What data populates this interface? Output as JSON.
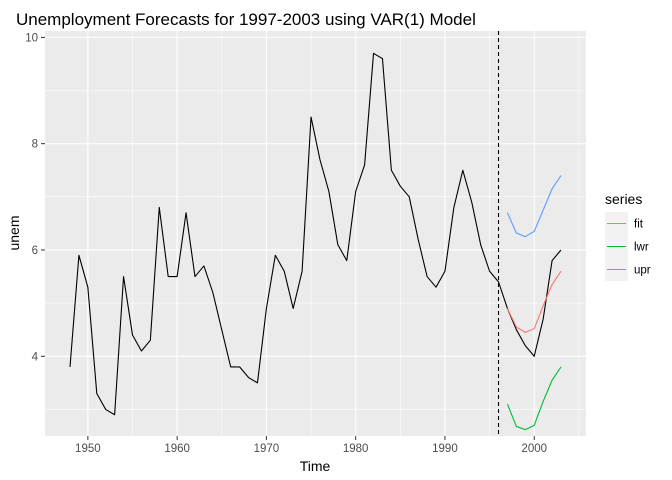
{
  "chart_data": {
    "type": "line",
    "title": "Unemployment Forecasts for 1997-2003 using VAR(1) Model",
    "xlabel": "Time",
    "ylabel": "unem",
    "xlim": [
      1945.2,
      2005.8
    ],
    "ylim": [
      2.5,
      10.12
    ],
    "x_ticks": [
      1950,
      1960,
      1970,
      1980,
      1990,
      2000
    ],
    "y_ticks": [
      4,
      6,
      8,
      10
    ],
    "grid": true,
    "background": "#ebebeb",
    "forecast_start_line": {
      "x": 1996,
      "style": "dashed",
      "color": "#000000"
    },
    "actual": {
      "color": "#000000",
      "x": [
        1948,
        1949,
        1950,
        1951,
        1952,
        1953,
        1954,
        1955,
        1956,
        1957,
        1958,
        1959,
        1960,
        1961,
        1962,
        1963,
        1964,
        1965,
        1966,
        1967,
        1968,
        1969,
        1970,
        1971,
        1972,
        1973,
        1974,
        1975,
        1976,
        1977,
        1978,
        1979,
        1980,
        1981,
        1982,
        1983,
        1984,
        1985,
        1986,
        1987,
        1988,
        1989,
        1990,
        1991,
        1992,
        1993,
        1994,
        1995,
        1996,
        1997,
        1998,
        1999,
        2000,
        2001,
        2002,
        2003
      ],
      "y": [
        3.8,
        5.9,
        5.3,
        3.3,
        3.0,
        2.9,
        5.5,
        4.4,
        4.1,
        4.3,
        6.8,
        5.5,
        5.5,
        6.7,
        5.5,
        5.7,
        5.2,
        4.5,
        3.8,
        3.8,
        3.6,
        3.5,
        4.9,
        5.9,
        5.6,
        4.9,
        5.6,
        8.5,
        7.7,
        7.1,
        6.1,
        5.8,
        7.1,
        7.6,
        9.7,
        9.6,
        7.5,
        7.2,
        7.0,
        6.2,
        5.5,
        5.3,
        5.6,
        6.8,
        7.5,
        6.9,
        6.1,
        5.6,
        5.4,
        4.9,
        4.5,
        4.2,
        4.0,
        4.7,
        5.8,
        6.0
      ]
    },
    "legend": {
      "title": "series",
      "position": "right"
    },
    "series": [
      {
        "name": "fit",
        "color": "#f8766d",
        "x": [
          1997,
          1998,
          1999,
          2000,
          2001,
          2002,
          2003
        ],
        "y": [
          4.9,
          4.55,
          4.45,
          4.52,
          4.95,
          5.35,
          5.6
        ]
      },
      {
        "name": "lwr",
        "color": "#00ba38",
        "x": [
          1997,
          1998,
          1999,
          2000,
          2001,
          2002,
          2003
        ],
        "y": [
          3.1,
          2.68,
          2.62,
          2.7,
          3.15,
          3.55,
          3.8
        ]
      },
      {
        "name": "upr",
        "color": "#619cff",
        "x": [
          1997,
          1998,
          1999,
          2000,
          2001,
          2002,
          2003
        ],
        "y": [
          6.7,
          6.32,
          6.25,
          6.35,
          6.75,
          7.15,
          7.4
        ]
      }
    ]
  }
}
